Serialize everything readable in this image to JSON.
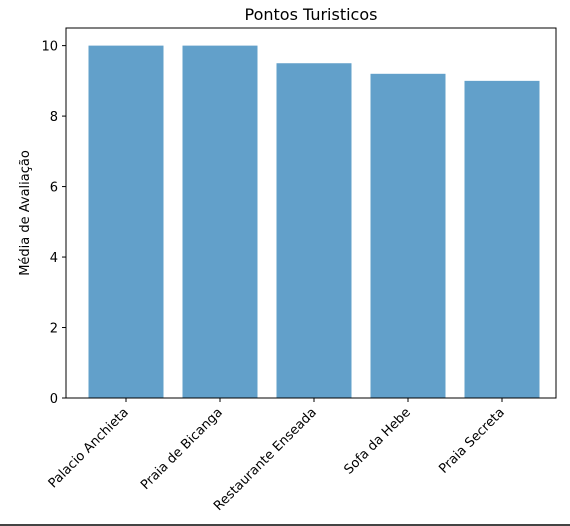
{
  "chart_data": {
    "type": "bar",
    "title": "Pontos Turisticos",
    "xlabel": "",
    "ylabel": "Média de Avaliação",
    "categories": [
      "Palacio Anchieta",
      "Praia de Bicanga",
      "Restaurante Enseada",
      "Sofa da Hebe",
      "Praia Secreta"
    ],
    "values": [
      10,
      10,
      9.5,
      9.2,
      9.0
    ],
    "ylim": [
      0,
      10.5
    ],
    "yticks": [
      0,
      2,
      4,
      6,
      8,
      10
    ],
    "ytick_labels": [
      "0",
      "2",
      "4",
      "6",
      "8",
      "10"
    ],
    "bar_color": "#62a0ca",
    "grid": false,
    "legend": "none"
  }
}
